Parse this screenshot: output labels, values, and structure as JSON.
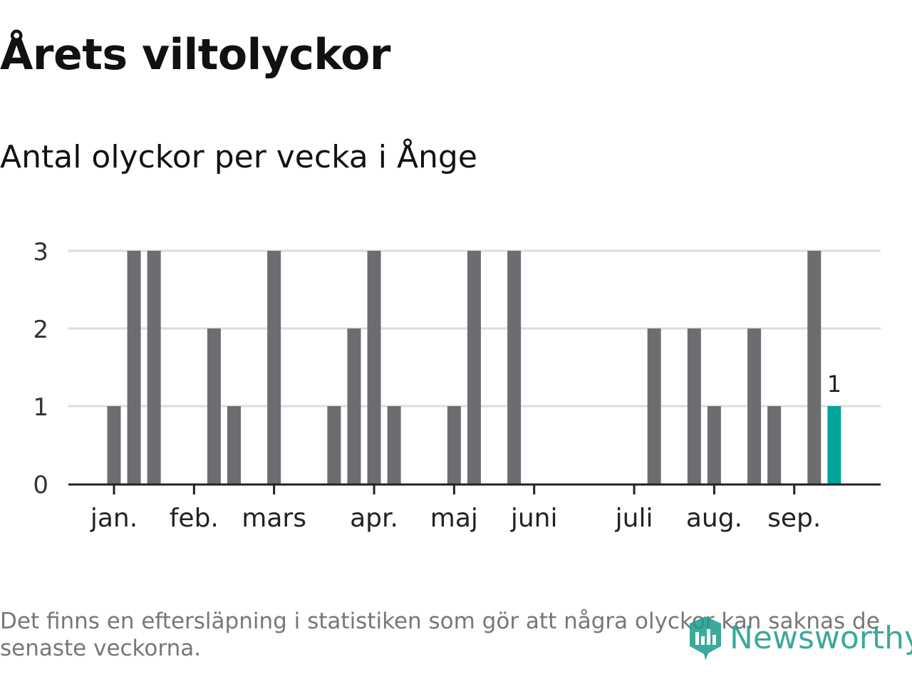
{
  "title": "Årets viltolyckor",
  "subtitle": "Antal olyckor per vecka i Ånge",
  "footnote": "Det finns en eftersläpning i statistiken som gör att några olyckor kan saknas de senaste veckorna.",
  "logo_text": "Newsworthy",
  "colors": {
    "bar": "#6d6c70",
    "highlight": "#00a59a",
    "grid": "#dddddd",
    "axis": "#222222",
    "logo": "#1a9b8a"
  },
  "chart_data": {
    "type": "bar",
    "ylim": [
      0,
      3
    ],
    "y_ticks": [
      "0",
      "1",
      "2",
      "3"
    ],
    "grid": true,
    "month_labels": [
      "jan.",
      "feb.",
      "mars",
      "apr.",
      "maj",
      "juni",
      "juli",
      "aug.",
      "sep."
    ],
    "values": [
      1,
      3,
      3,
      0,
      0,
      2,
      1,
      0,
      3,
      0,
      0,
      1,
      2,
      3,
      1,
      0,
      0,
      1,
      3,
      0,
      3,
      0,
      0,
      0,
      0,
      0,
      0,
      2,
      0,
      2,
      1,
      0,
      2,
      1,
      0,
      3,
      1
    ],
    "highlight_index": 36,
    "highlight_label": "1"
  }
}
